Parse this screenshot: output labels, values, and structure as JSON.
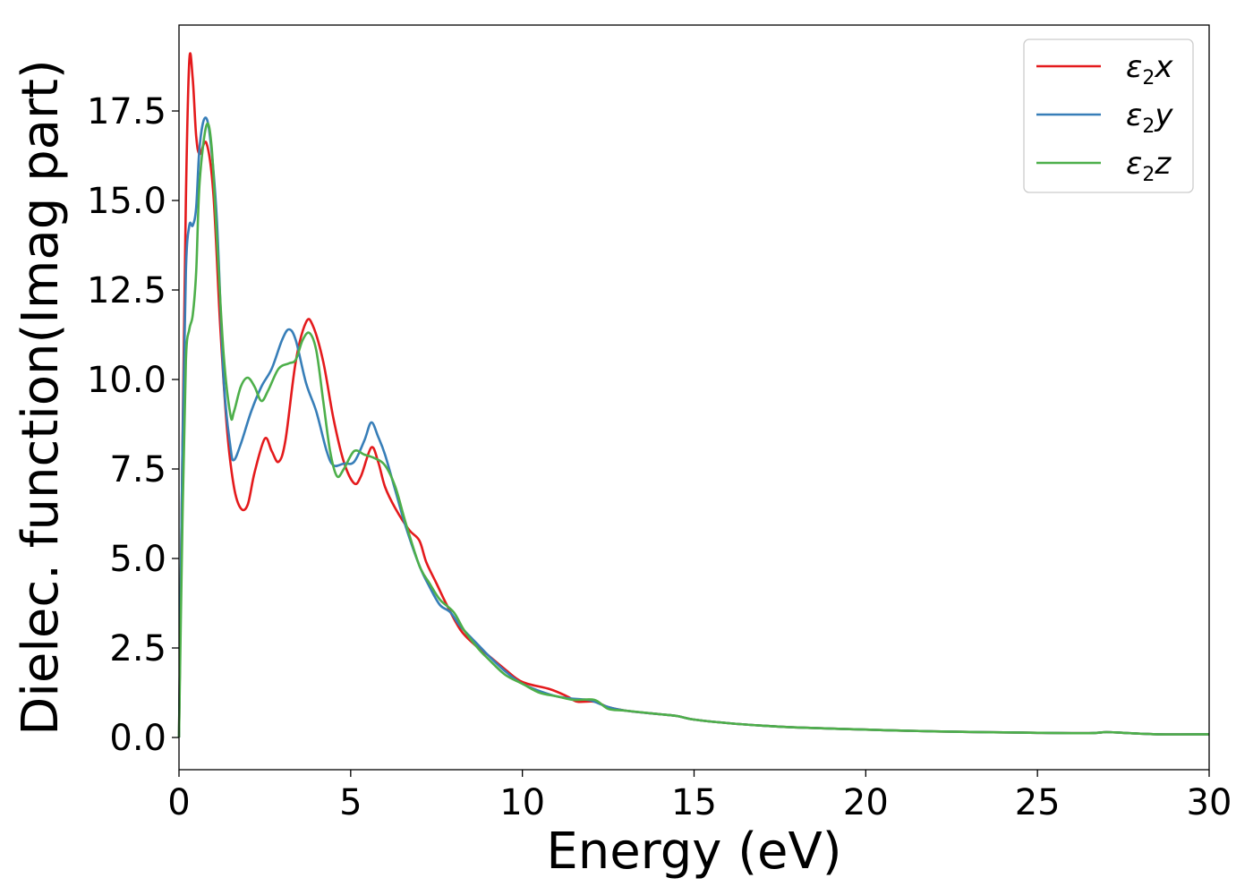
{
  "chart_data": {
    "type": "line",
    "xlabel": "Energy (eV)",
    "ylabel": "Dielec. function(Imag part)",
    "xlim": [
      0,
      30
    ],
    "ylim": [
      -0.9,
      19.9
    ],
    "x_ticks": [
      0,
      5,
      10,
      15,
      20,
      25,
      30
    ],
    "y_ticks": [
      0.0,
      2.5,
      5.0,
      7.5,
      10.0,
      12.5,
      15.0,
      17.5
    ],
    "x_tick_labels": [
      "0",
      "5",
      "10",
      "15",
      "20",
      "25",
      "30"
    ],
    "y_tick_labels": [
      "0.0",
      "2.5",
      "5.0",
      "7.5",
      "10.0",
      "12.5",
      "15.0",
      "17.5"
    ],
    "grid": false,
    "legend_position": "top-right",
    "series": [
      {
        "name": "ε2x",
        "legend_base": "ε",
        "legend_sub": "2",
        "legend_var": "x",
        "color": "#e41a1c",
        "points": [
          [
            0,
            0
          ],
          [
            0.1,
            8.0
          ],
          [
            0.2,
            15.0
          ],
          [
            0.3,
            18.9
          ],
          [
            0.4,
            18.4
          ],
          [
            0.5,
            16.8
          ],
          [
            0.6,
            16.3
          ],
          [
            0.8,
            16.6
          ],
          [
            1.0,
            15.2
          ],
          [
            1.2,
            11.5
          ],
          [
            1.4,
            8.6
          ],
          [
            1.6,
            7.0
          ],
          [
            1.8,
            6.4
          ],
          [
            2.0,
            6.5
          ],
          [
            2.2,
            7.4
          ],
          [
            2.5,
            8.35
          ],
          [
            2.7,
            8.0
          ],
          [
            2.9,
            7.7
          ],
          [
            3.1,
            8.3
          ],
          [
            3.4,
            10.5
          ],
          [
            3.7,
            11.6
          ],
          [
            3.9,
            11.5
          ],
          [
            4.2,
            10.5
          ],
          [
            4.5,
            8.9
          ],
          [
            4.8,
            7.7
          ],
          [
            5.1,
            7.1
          ],
          [
            5.3,
            7.3
          ],
          [
            5.6,
            8.1
          ],
          [
            5.8,
            7.7
          ],
          [
            6.0,
            7.0
          ],
          [
            6.3,
            6.4
          ],
          [
            6.7,
            5.8
          ],
          [
            7.0,
            5.5
          ],
          [
            7.2,
            4.9
          ],
          [
            7.5,
            4.3
          ],
          [
            7.8,
            3.7
          ],
          [
            8.2,
            3.0
          ],
          [
            8.6,
            2.6
          ],
          [
            9.0,
            2.3
          ],
          [
            9.5,
            1.9
          ],
          [
            10.0,
            1.55
          ],
          [
            10.8,
            1.35
          ],
          [
            11.3,
            1.15
          ],
          [
            11.6,
            1.0
          ],
          [
            12.1,
            1.0
          ],
          [
            12.5,
            0.85
          ],
          [
            13.0,
            0.75
          ],
          [
            14.0,
            0.65
          ],
          [
            14.5,
            0.6
          ],
          [
            15.0,
            0.5
          ],
          [
            16.0,
            0.4
          ],
          [
            17.0,
            0.33
          ],
          [
            18.0,
            0.28
          ],
          [
            20.0,
            0.22
          ],
          [
            22.0,
            0.17
          ],
          [
            25.0,
            0.13
          ],
          [
            26.5,
            0.12
          ],
          [
            27.0,
            0.15
          ],
          [
            27.5,
            0.13
          ],
          [
            28.5,
            0.09
          ],
          [
            30.0,
            0.09
          ]
        ]
      },
      {
        "name": "ε2y",
        "legend_base": "ε",
        "legend_sub": "2",
        "legend_var": "y",
        "color": "#377eb8",
        "points": [
          [
            0,
            0
          ],
          [
            0.1,
            8.0
          ],
          [
            0.2,
            13.0
          ],
          [
            0.3,
            14.3
          ],
          [
            0.4,
            14.3
          ],
          [
            0.5,
            14.8
          ],
          [
            0.6,
            16.5
          ],
          [
            0.75,
            17.3
          ],
          [
            0.9,
            16.8
          ],
          [
            1.1,
            14.5
          ],
          [
            1.3,
            10.0
          ],
          [
            1.5,
            8.1
          ],
          [
            1.6,
            7.75
          ],
          [
            1.8,
            8.2
          ],
          [
            2.1,
            9.1
          ],
          [
            2.4,
            9.8
          ],
          [
            2.7,
            10.3
          ],
          [
            3.0,
            11.1
          ],
          [
            3.2,
            11.4
          ],
          [
            3.4,
            11.1
          ],
          [
            3.7,
            9.9
          ],
          [
            4.0,
            9.1
          ],
          [
            4.3,
            8.0
          ],
          [
            4.5,
            7.6
          ],
          [
            4.8,
            7.65
          ],
          [
            5.1,
            7.7
          ],
          [
            5.4,
            8.3
          ],
          [
            5.6,
            8.8
          ],
          [
            5.8,
            8.4
          ],
          [
            6.0,
            7.9
          ],
          [
            6.3,
            6.9
          ],
          [
            6.6,
            5.9
          ],
          [
            7.0,
            4.8
          ],
          [
            7.3,
            4.2
          ],
          [
            7.6,
            3.7
          ],
          [
            7.9,
            3.5
          ],
          [
            8.2,
            3.1
          ],
          [
            8.7,
            2.6
          ],
          [
            9.0,
            2.3
          ],
          [
            9.5,
            1.85
          ],
          [
            10.0,
            1.5
          ],
          [
            10.8,
            1.2
          ],
          [
            11.3,
            1.1
          ],
          [
            11.9,
            1.05
          ],
          [
            12.1,
            1.0
          ],
          [
            12.5,
            0.85
          ],
          [
            13.0,
            0.75
          ],
          [
            14.0,
            0.65
          ],
          [
            14.5,
            0.6
          ],
          [
            15.0,
            0.5
          ],
          [
            16.0,
            0.4
          ],
          [
            17.0,
            0.33
          ],
          [
            18.0,
            0.28
          ],
          [
            20.0,
            0.22
          ],
          [
            22.0,
            0.17
          ],
          [
            25.0,
            0.13
          ],
          [
            26.5,
            0.12
          ],
          [
            27.0,
            0.15
          ],
          [
            27.5,
            0.13
          ],
          [
            28.5,
            0.09
          ],
          [
            30.0,
            0.09
          ]
        ]
      },
      {
        "name": "ε2z",
        "legend_base": "ε",
        "legend_sub": "2",
        "legend_var": "z",
        "color": "#4daf4a",
        "points": [
          [
            0,
            0
          ],
          [
            0.1,
            6.0
          ],
          [
            0.2,
            10.5
          ],
          [
            0.3,
            11.4
          ],
          [
            0.4,
            11.8
          ],
          [
            0.5,
            13.0
          ],
          [
            0.6,
            15.5
          ],
          [
            0.8,
            17.1
          ],
          [
            0.95,
            16.5
          ],
          [
            1.1,
            14.0
          ],
          [
            1.3,
            10.7
          ],
          [
            1.5,
            9.0
          ],
          [
            1.6,
            9.1
          ],
          [
            1.8,
            9.8
          ],
          [
            2.0,
            10.05
          ],
          [
            2.2,
            9.8
          ],
          [
            2.4,
            9.4
          ],
          [
            2.6,
            9.7
          ],
          [
            2.9,
            10.3
          ],
          [
            3.2,
            10.45
          ],
          [
            3.4,
            10.55
          ],
          [
            3.6,
            11.1
          ],
          [
            3.8,
            11.3
          ],
          [
            4.0,
            10.8
          ],
          [
            4.2,
            9.4
          ],
          [
            4.4,
            8.0
          ],
          [
            4.6,
            7.3
          ],
          [
            4.8,
            7.5
          ],
          [
            5.1,
            8.0
          ],
          [
            5.4,
            7.9
          ],
          [
            5.7,
            7.8
          ],
          [
            6.0,
            7.6
          ],
          [
            6.3,
            7.0
          ],
          [
            6.6,
            6.0
          ],
          [
            7.0,
            4.8
          ],
          [
            7.3,
            4.3
          ],
          [
            7.6,
            3.85
          ],
          [
            8.0,
            3.5
          ],
          [
            8.3,
            3.0
          ],
          [
            8.7,
            2.5
          ],
          [
            9.0,
            2.2
          ],
          [
            9.5,
            1.75
          ],
          [
            10.0,
            1.5
          ],
          [
            10.5,
            1.25
          ],
          [
            11.0,
            1.15
          ],
          [
            11.5,
            1.05
          ],
          [
            12.1,
            1.05
          ],
          [
            12.5,
            0.8
          ],
          [
            13.0,
            0.75
          ],
          [
            14.0,
            0.65
          ],
          [
            14.5,
            0.6
          ],
          [
            15.0,
            0.5
          ],
          [
            16.0,
            0.4
          ],
          [
            17.0,
            0.33
          ],
          [
            18.0,
            0.28
          ],
          [
            20.0,
            0.22
          ],
          [
            22.0,
            0.17
          ],
          [
            25.0,
            0.13
          ],
          [
            26.5,
            0.12
          ],
          [
            27.0,
            0.15
          ],
          [
            27.5,
            0.13
          ],
          [
            28.5,
            0.09
          ],
          [
            30.0,
            0.09
          ]
        ]
      }
    ]
  }
}
